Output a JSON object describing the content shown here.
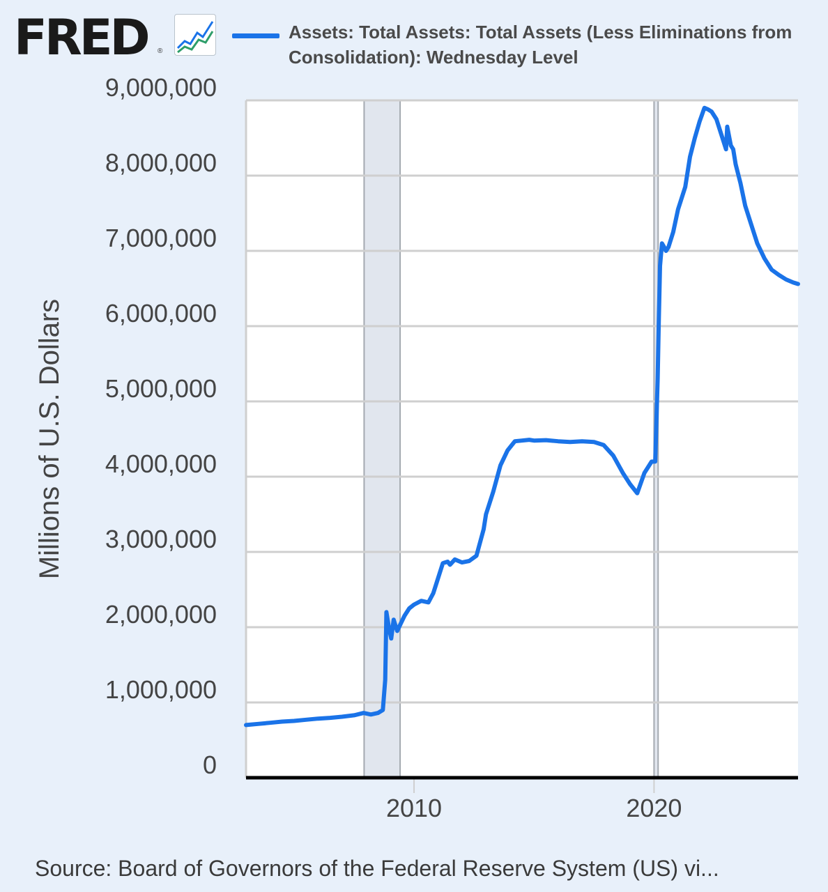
{
  "header": {
    "logo": "FRED",
    "logo_mark": "®",
    "legend_label": "Assets: Total Assets: Total Assets (Less Eliminations from Consolidation): Wednesday Level",
    "line_color": "#1a73e8"
  },
  "source": "Source: Board of Governors of the Federal Reserve System (US) vi...",
  "chart_data": {
    "type": "line",
    "title": "",
    "xlabel": "",
    "ylabel": "Millions of U.S. Dollars",
    "xlim": [
      2003.0,
      2026.0
    ],
    "ylim": [
      0,
      9000000
    ],
    "yticks": [
      {
        "value": 0,
        "label": "0"
      },
      {
        "value": 1000000,
        "label": "1,000,000"
      },
      {
        "value": 2000000,
        "label": "2,000,000"
      },
      {
        "value": 3000000,
        "label": "3,000,000"
      },
      {
        "value": 4000000,
        "label": "4,000,000"
      },
      {
        "value": 5000000,
        "label": "5,000,000"
      },
      {
        "value": 6000000,
        "label": "6,000,000"
      },
      {
        "value": 7000000,
        "label": "7,000,000"
      },
      {
        "value": 8000000,
        "label": "8,000,000"
      },
      {
        "value": 9000000,
        "label": "9,000,000"
      }
    ],
    "xticks": [
      {
        "value": 2010,
        "label": "2010"
      },
      {
        "value": 2020,
        "label": "2020"
      }
    ],
    "recessions": [
      {
        "start": 2007.92,
        "end": 2009.42
      },
      {
        "start": 2020.0,
        "end": 2020.17
      }
    ],
    "grid": true,
    "series": [
      {
        "name": "Assets: Total Assets: Total Assets (Less Eliminations from Consolidation): Wednesday Level",
        "color": "#1a73e8",
        "x": [
          2003.0,
          2003.5,
          2004.0,
          2004.5,
          2005.0,
          2005.5,
          2006.0,
          2006.5,
          2007.0,
          2007.5,
          2007.9,
          2008.2,
          2008.5,
          2008.7,
          2008.8,
          2008.85,
          2008.95,
          2009.05,
          2009.15,
          2009.3,
          2009.45,
          2009.6,
          2009.8,
          2010.0,
          2010.3,
          2010.6,
          2010.8,
          2011.0,
          2011.2,
          2011.4,
          2011.5,
          2011.7,
          2012.0,
          2012.3,
          2012.6,
          2012.9,
          2013.0,
          2013.3,
          2013.6,
          2013.9,
          2014.2,
          2014.5,
          2014.8,
          2015.0,
          2015.5,
          2016.0,
          2016.5,
          2017.0,
          2017.5,
          2017.9,
          2018.3,
          2018.7,
          2019.0,
          2019.3,
          2019.6,
          2019.8,
          2019.9,
          2020.05,
          2020.15,
          2020.2,
          2020.25,
          2020.33,
          2020.42,
          2020.5,
          2020.6,
          2020.8,
          2021.0,
          2021.3,
          2021.5,
          2021.7,
          2021.9,
          2022.1,
          2022.25,
          2022.4,
          2022.6,
          2022.8,
          2023.0,
          2023.05,
          2023.2,
          2023.3,
          2023.4,
          2023.6,
          2023.8,
          2024.0,
          2024.3,
          2024.6,
          2024.9,
          2025.2,
          2025.5,
          2025.8,
          2026.0
        ],
        "values": [
          700000,
          715000,
          730000,
          745000,
          755000,
          770000,
          785000,
          795000,
          810000,
          830000,
          860000,
          840000,
          860000,
          900000,
          1300000,
          2200000,
          2000000,
          1850000,
          2100000,
          1950000,
          2050000,
          2150000,
          2250000,
          2300000,
          2350000,
          2330000,
          2450000,
          2650000,
          2850000,
          2870000,
          2830000,
          2900000,
          2860000,
          2880000,
          2950000,
          3300000,
          3500000,
          3800000,
          4150000,
          4350000,
          4470000,
          4480000,
          4490000,
          4480000,
          4485000,
          4470000,
          4460000,
          4470000,
          4460000,
          4420000,
          4280000,
          4050000,
          3900000,
          3780000,
          4050000,
          4150000,
          4200000,
          4200000,
          5300000,
          6100000,
          6800000,
          7100000,
          7050000,
          7000000,
          7050000,
          7250000,
          7550000,
          7850000,
          8250000,
          8500000,
          8720000,
          8900000,
          8880000,
          8850000,
          8750000,
          8550000,
          8350000,
          8650000,
          8400000,
          8350000,
          8150000,
          7900000,
          7600000,
          7400000,
          7100000,
          6900000,
          6750000,
          6680000,
          6620000,
          6580000,
          6560000
        ]
      }
    ]
  }
}
